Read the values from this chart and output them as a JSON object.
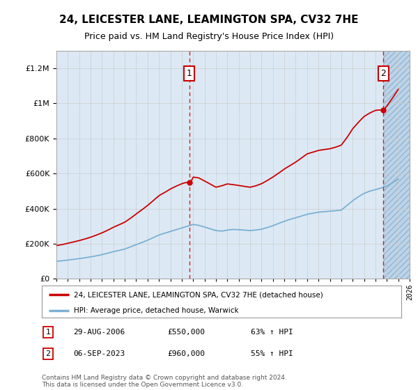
{
  "title": "24, LEICESTER LANE, LEAMINGTON SPA, CV32 7HE",
  "subtitle": "Price paid vs. HM Land Registry's House Price Index (HPI)",
  "hpi_label": "HPI: Average price, detached house, Warwick",
  "property_label": "24, LEICESTER LANE, LEAMINGTON SPA, CV32 7HE (detached house)",
  "sale1_date": "29-AUG-2006",
  "sale1_price": 550000,
  "sale1_pct": "63% ↑ HPI",
  "sale2_date": "06-SEP-2023",
  "sale2_price": 960000,
  "sale2_pct": "55% ↑ HPI",
  "footer": "Contains HM Land Registry data © Crown copyright and database right 2024.\nThis data is licensed under the Open Government Licence v3.0.",
  "ylim": [
    0,
    1300000
  ],
  "year_start": 1995,
  "year_end": 2026,
  "bg_color": "#dce9f5",
  "red_color": "#cc0000",
  "blue_color": "#7ab0d4",
  "grid_color": "#cccccc",
  "marker1_year": 2006.667,
  "marker2_year": 2023.69,
  "years_hpi": [
    1995,
    1995.5,
    1996,
    1996.5,
    1997,
    1997.5,
    1998,
    1998.5,
    1999,
    1999.5,
    2000,
    2000.5,
    2001,
    2001.5,
    2002,
    2002.5,
    2003,
    2003.5,
    2004,
    2004.5,
    2005,
    2005.5,
    2006,
    2006.5,
    2007,
    2007.5,
    2008,
    2008.5,
    2009,
    2009.5,
    2010,
    2010.5,
    2011,
    2011.5,
    2012,
    2012.5,
    2013,
    2013.5,
    2014,
    2014.5,
    2015,
    2015.5,
    2016,
    2016.5,
    2017,
    2017.5,
    2018,
    2018.5,
    2019,
    2019.5,
    2020,
    2020.5,
    2021,
    2021.5,
    2022,
    2022.5,
    2023,
    2023.5,
    2024,
    2024.5,
    2025
  ],
  "hpi_vals": [
    100000,
    103000,
    107000,
    111000,
    115000,
    120000,
    125000,
    131000,
    138000,
    146000,
    155000,
    162000,
    170000,
    182000,
    195000,
    207000,
    220000,
    235000,
    250000,
    260000,
    270000,
    280000,
    290000,
    300000,
    310000,
    305000,
    295000,
    285000,
    275000,
    272000,
    278000,
    282000,
    280000,
    278000,
    275000,
    278000,
    283000,
    292000,
    303000,
    316000,
    328000,
    339000,
    348000,
    358000,
    368000,
    374000,
    380000,
    383000,
    386000,
    388000,
    392000,
    418000,
    445000,
    468000,
    487000,
    500000,
    508000,
    518000,
    528000,
    548000,
    568000
  ],
  "years_prop": [
    1995,
    1995.5,
    1996,
    1996.5,
    1997,
    1997.5,
    1998,
    1998.5,
    1999,
    1999.5,
    2000,
    2000.5,
    2001,
    2001.5,
    2002,
    2002.5,
    2003,
    2003.5,
    2004,
    2004.5,
    2005,
    2005.5,
    2006,
    2006.3,
    2006.667,
    2006.9,
    2007,
    2007.5,
    2008,
    2008.5,
    2009,
    2009.5,
    2010,
    2010.5,
    2011,
    2011.5,
    2012,
    2012.5,
    2013,
    2013.5,
    2014,
    2014.5,
    2015,
    2015.5,
    2016,
    2016.5,
    2017,
    2017.5,
    2018,
    2018.5,
    2019,
    2019.5,
    2020,
    2020.5,
    2021,
    2021.5,
    2022,
    2022.5,
    2023,
    2023.3,
    2023.69,
    2024,
    2024.5,
    2025
  ],
  "prop_vals": [
    190000,
    195000,
    203000,
    210000,
    218000,
    227000,
    237000,
    249000,
    262000,
    277000,
    294000,
    308000,
    323000,
    345000,
    370000,
    393000,
    418000,
    446000,
    474000,
    492000,
    512000,
    528000,
    542000,
    548000,
    550000,
    565000,
    580000,
    575000,
    558000,
    540000,
    522000,
    530000,
    541000,
    537000,
    532000,
    527000,
    522000,
    530000,
    542000,
    560000,
    580000,
    602000,
    626000,
    645000,
    665000,
    688000,
    712000,
    722000,
    732000,
    737000,
    741000,
    750000,
    762000,
    805000,
    855000,
    892000,
    925000,
    945000,
    960000,
    962000,
    960000,
    985000,
    1030000,
    1080000
  ]
}
